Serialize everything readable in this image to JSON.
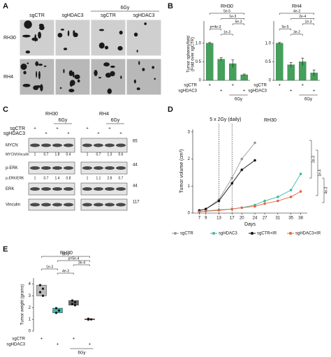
{
  "panels": [
    "A",
    "B",
    "C",
    "D",
    "E"
  ],
  "panel_a": {
    "columns": [
      "sgCTR",
      "sgHDAC3",
      "sgCTR",
      "sgHDAC3"
    ],
    "group_label": "6Gy",
    "rows": [
      "RH30",
      "RH4"
    ]
  },
  "panel_c": {
    "cell_lines": [
      "RH30",
      "RH4"
    ],
    "conditions": [
      {
        "label": "sgCTR",
        "marks": [
          "+",
          null,
          "+",
          null
        ]
      },
      {
        "label": "sgHDAC3",
        "marks": [
          null,
          "+",
          null,
          "+"
        ]
      }
    ],
    "group_label": "6Gy",
    "blots": [
      {
        "label": "MYCN",
        "mw": 65
      },
      {
        "label": "p-ERK",
        "mw": 44
      },
      {
        "label": "ERK",
        "mw": 44
      },
      {
        "label": "Vinculin",
        "mw": 117
      }
    ],
    "ratios": [
      {
        "label": "MYCN/Vinculin",
        "values": [
          [
            1,
            0.7,
            1.8,
            0.4
          ],
          [
            1,
            0.7,
            1.3,
            0.6
          ]
        ]
      },
      {
        "label": "p-ERK/ERK",
        "values": [
          [
            1,
            0.7,
            1.4,
            0.8
          ],
          [
            1,
            1.1,
            2.8,
            0.7
          ]
        ]
      }
    ]
  },
  "chart_data": [
    {
      "type": "bar",
      "title": "RH30",
      "ylabel": "Tumor spheres/field",
      "ylabel2": "(Fold over sgCTR)",
      "values": [
        1.0,
        0.57,
        0.45,
        0.15
      ],
      "errors": [
        0.02,
        0.04,
        0.1,
        0.02
      ],
      "color": "#44a05b",
      "ylim": [
        0,
        1.6
      ],
      "yticks": [
        0,
        0.5,
        {
          "value": 1,
          "label": "1.0"
        }
      ],
      "annotations": [
        "5e-5",
        "p=4e-3",
        "1e-3",
        "1e-3",
        "5e-3"
      ],
      "conditions": [
        {
          "label": "sgCTR",
          "marks": [
            "+",
            null,
            "+",
            null
          ]
        },
        {
          "label": "sgHDAC3",
          "marks": [
            null,
            "+",
            null,
            "+"
          ]
        }
      ],
      "group_label": "6Gy"
    },
    {
      "type": "bar",
      "title": "RH4",
      "values": [
        1.0,
        0.42,
        0.5,
        0.2
      ],
      "errors": [
        0.02,
        0.06,
        0.1,
        0.08
      ],
      "color": "#44a05b",
      "ylim": [
        0,
        1.6
      ],
      "yticks": [
        0,
        0.5,
        {
          "value": 1,
          "label": "1.0"
        }
      ],
      "annotations": [
        "4e-3",
        "5e-5",
        "2e-4",
        "3e-2",
        "1e-3"
      ],
      "conditions": [
        {
          "label": "sgCTR",
          "marks": [
            "+",
            null,
            "+",
            null
          ]
        },
        {
          "label": "sgHDAC3",
          "marks": [
            null,
            "+",
            null,
            "+"
          ]
        }
      ],
      "group_label": "6Gy"
    },
    {
      "type": "line",
      "title": "RH30",
      "annotation": "5 x 2Gy (daily)",
      "xlabel": "Days",
      "ylabel": "Tumor volume (cm³)",
      "x": [
        7,
        9,
        13,
        17,
        20,
        24,
        27,
        31,
        35,
        38
      ],
      "xlim": [
        5,
        40
      ],
      "xticks": [
        7,
        9,
        13,
        17,
        20,
        24,
        27,
        31,
        35,
        38
      ],
      "ylim": [
        0,
        3.1
      ],
      "yticks": [
        0,
        1,
        2,
        3
      ],
      "irradiation_days": [
        13,
        17
      ],
      "series": [
        {
          "name": "sgCTR",
          "color": "#999999",
          "values": [
            0.1,
            0.15,
            0.5,
            1.3,
            2.0,
            2.6,
            null,
            null,
            null,
            null
          ]
        },
        {
          "name": "sgHDAC3",
          "color": "#3fb8a8",
          "values": [
            0.05,
            0.08,
            0.12,
            0.15,
            0.2,
            0.3,
            0.45,
            0.6,
            0.85,
            1.45
          ]
        },
        {
          "name": "sgCTR+IR",
          "color": "#111111",
          "values": [
            0.1,
            0.15,
            0.45,
            1.1,
            1.6,
            1.95,
            null,
            null,
            null,
            null
          ]
        },
        {
          "name": "sgHDAC3+IR",
          "color": "#e8643c",
          "values": [
            0.05,
            0.07,
            0.1,
            0.15,
            0.2,
            0.25,
            0.35,
            0.45,
            0.6,
            0.8
          ]
        }
      ],
      "annotations": [
        "2e-3",
        "1e-4",
        "4e-3"
      ]
    },
    {
      "type": "box",
      "title": "RH30",
      "ylabel": "Tumor weight (grams)",
      "ylim": [
        0,
        4.5
      ],
      "yticks": [
        0,
        1,
        2,
        3,
        4
      ],
      "groups": [
        {
          "color": "#bbbbbb",
          "points": [
            3.9,
            3.6,
            3.3,
            3.0
          ]
        },
        {
          "color": "#3fb8a8",
          "points": [
            1.95,
            1.75,
            1.55
          ]
        },
        {
          "color": "#666666",
          "points": [
            2.6,
            2.45,
            2.3,
            2.2
          ]
        },
        {
          "color": "#e8643c",
          "points": [
            1.05,
            1.0,
            0.98
          ]
        }
      ],
      "annotations": [
        "8e-5",
        "1e-3",
        "p=5e-4",
        "4e-3",
        "3e-4"
      ],
      "conditions": [
        {
          "label": "sgCTR",
          "marks": [
            "+",
            null,
            "+",
            null
          ]
        },
        {
          "label": "sgHDAC3",
          "marks": [
            null,
            "+",
            null,
            "+"
          ]
        }
      ],
      "group_label": "6Gy"
    }
  ]
}
